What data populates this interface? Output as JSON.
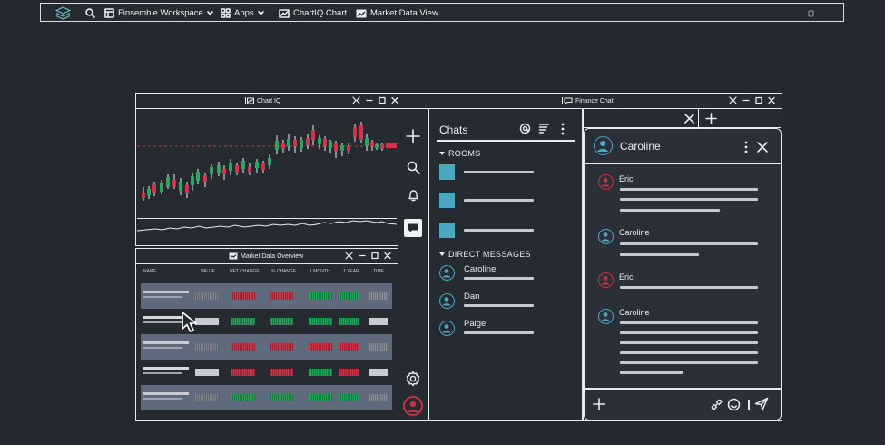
{
  "toolbar": {
    "workspace": "Finsemble Workspace",
    "apps": "Apps",
    "chartiq": "ChartIQ Chart",
    "market": "Market Data View"
  },
  "windows": {
    "chartiq_title": "Chart IQ",
    "market_title": "Market Data Overview",
    "chat_title": "Finance Chat"
  },
  "market_table": {
    "headers": [
      "NAME",
      "VALUE",
      "NET CHANGE",
      "% CHANGE",
      "1 MONTH",
      "1 YEAR",
      "TIME"
    ]
  },
  "chat": {
    "chats_label": "Chats",
    "rooms_label": "ROOMS",
    "dm_label": "DIRECT MESSAGES",
    "dms": [
      "Caroline",
      "Dan",
      "Paige"
    ],
    "conversation_name": "Caroline",
    "messages": [
      {
        "author": "Eric"
      },
      {
        "author": "Caroline"
      },
      {
        "author": "Eric"
      },
      {
        "author": "Caroline"
      }
    ]
  },
  "colors": {
    "background": "#252830",
    "room_accent": "#4ba8be",
    "up": "#2ea55e",
    "down": "#d0334a",
    "row_shade": "#5f6a7d"
  }
}
